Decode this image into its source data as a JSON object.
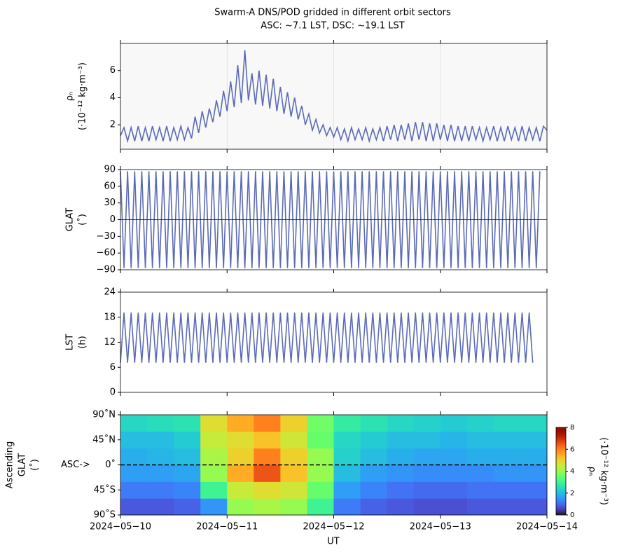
{
  "chart_data": {
    "type": "multi-panel",
    "title": "Swarm-A DNS/POD gridded in different orbit sectors",
    "subtitle": "ASC: ~7.1 LST, DSC: ~19.1 LST",
    "xlabel": "UT",
    "xlim": [
      0,
      96
    ],
    "xticks": [
      {
        "value": 0,
        "label": "2024−05−10"
      },
      {
        "value": 24,
        "label": "2024−05−11"
      },
      {
        "value": 48,
        "label": "2024−05−12"
      },
      {
        "value": 72,
        "label": "2024−05−13"
      },
      {
        "value": 96,
        "label": "2024−05−14"
      }
    ],
    "x": [
      0,
      0.8,
      1.6,
      2.4,
      3.2,
      4,
      4.8,
      5.6,
      6.4,
      7.2,
      8,
      8.8,
      9.6,
      10.4,
      11.2,
      12,
      12.8,
      13.6,
      14.4,
      15.2,
      16,
      16.8,
      17.6,
      18.4,
      19.2,
      20,
      20.8,
      21.6,
      22.4,
      23.2,
      24,
      24.8,
      25.6,
      26.4,
      27.2,
      28,
      28.8,
      29.6,
      30.4,
      31.2,
      32,
      32.8,
      33.6,
      34.4,
      35.2,
      36,
      36.8,
      37.6,
      38.4,
      39.2,
      40,
      40.8,
      41.6,
      42.4,
      43.2,
      44,
      44.8,
      45.6,
      46.4,
      47.2,
      48,
      48.8,
      49.6,
      50.4,
      51.2,
      52,
      52.8,
      53.6,
      54.4,
      55.2,
      56,
      56.8,
      57.6,
      58.4,
      59.2,
      60,
      60.8,
      61.6,
      62.4,
      63.2,
      64,
      64.8,
      65.6,
      66.4,
      67.2,
      68,
      68.8,
      69.6,
      70.4,
      71.2,
      72,
      72.8,
      73.6,
      74.4,
      75.2,
      76,
      76.8,
      77.6,
      78.4,
      79.2,
      80,
      80.8,
      81.6,
      82.4,
      83.2,
      84,
      84.8,
      85.6,
      86.4,
      87.2,
      88,
      88.8,
      89.6,
      90.4,
      91.2,
      92,
      92.8,
      93.6,
      94.4,
      95.2,
      96
    ],
    "panels": [
      {
        "type": "line",
        "ylabel": [
          "ρₙ",
          "(·10⁻¹² kg·m⁻³)"
        ],
        "ylim": [
          0.2,
          8
        ],
        "yticks": [
          2,
          4,
          6
        ],
        "grid": true,
        "series": [
          {
            "color": "#5b6bb5",
            "values": [
              1.2,
              1.8,
              0.8,
              1.8,
              0.8,
              1.9,
              0.8,
              1.8,
              0.8,
              1.9,
              0.9,
              1.8,
              0.8,
              1.9,
              0.8,
              1.8,
              0.9,
              1.9,
              0.9,
              1.8,
              1.0,
              2.6,
              1.4,
              3.0,
              1.8,
              3.2,
              2.2,
              3.8,
              2.6,
              4.5,
              3.0,
              5.2,
              3.3,
              6.4,
              3.6,
              7.5,
              3.8,
              5.8,
              3.5,
              6.0,
              3.4,
              5.7,
              3.2,
              5.4,
              3.0,
              4.8,
              2.8,
              4.4,
              2.6,
              4.0,
              2.4,
              3.4,
              2.0,
              2.8,
              1.6,
              2.4,
              1.4,
              2.0,
              1.2,
              1.8,
              1.1,
              1.8,
              0.9,
              1.7,
              0.8,
              1.8,
              0.9,
              1.7,
              0.9,
              1.8,
              0.8,
              1.7,
              0.9,
              1.8,
              0.8,
              1.9,
              0.9,
              2.0,
              0.8,
              2.0,
              0.9,
              2.1,
              0.8,
              2.2,
              0.9,
              2.2,
              0.8,
              2.1,
              0.8,
              2.1,
              0.9,
              2.0,
              0.8,
              2.0,
              0.8,
              1.9,
              0.8,
              1.9,
              0.8,
              1.9,
              0.9,
              1.8,
              0.8,
              1.8,
              0.9,
              1.9,
              0.8,
              1.8,
              0.8,
              1.9,
              0.9,
              1.8,
              0.8,
              1.9,
              0.8,
              1.8,
              0.9,
              1.8,
              0.8,
              1.9,
              1.6
            ]
          }
        ]
      },
      {
        "type": "line",
        "ylabel": [
          "GLAT",
          "(˚)"
        ],
        "ylim": [
          -90,
          90
        ],
        "yticks": [
          {
            "value": -90,
            "label": "−90"
          },
          {
            "value": -60,
            "label": "−60"
          },
          {
            "value": -30,
            "label": "−30"
          },
          0,
          30,
          60,
          90
        ],
        "hline": 0,
        "series": [
          {
            "color": "#5b6bb5",
            "values": [
              87,
              -87,
              87,
              -87,
              87,
              -87,
              87,
              -87,
              87,
              -87,
              87,
              -87,
              87,
              -87,
              87,
              -87,
              87,
              -87,
              87,
              -87,
              87,
              -87,
              87,
              -87,
              87,
              -87,
              87,
              -87,
              87,
              -87,
              87,
              -87,
              87,
              -87,
              87,
              -87,
              87,
              -87,
              87,
              -87,
              87,
              -87,
              87,
              -87,
              87,
              -87,
              87,
              -87,
              87,
              -87,
              87,
              -87,
              87,
              -87,
              87,
              -87,
              87,
              -87,
              87,
              -87,
              87,
              -87,
              87,
              -87,
              87,
              -87,
              87,
              -87,
              87,
              -87,
              87,
              -87,
              87,
              -87,
              87,
              -87,
              87,
              -87,
              87,
              -87,
              87,
              -87,
              87,
              -87,
              87,
              -87,
              87,
              -87,
              87,
              -87,
              87,
              -87,
              87,
              -87,
              87,
              -87,
              87,
              -87,
              87,
              -87,
              87,
              -87,
              87,
              -87,
              87,
              -87,
              87,
              -87,
              87,
              -87,
              87,
              -87,
              87,
              -87,
              87,
              -87,
              87,
              -87,
              87
            ]
          }
        ]
      },
      {
        "type": "line",
        "ylabel": [
          "LST",
          "(h)"
        ],
        "ylim": [
          0,
          24
        ],
        "yticks": [
          0,
          6,
          12,
          18,
          24
        ],
        "series": [
          {
            "color": "#5b6bb5",
            "values": [
              7.1,
              19.1,
              7.1,
              19.1,
              7.1,
              19.1,
              7.1,
              19.1,
              7.1,
              19.1,
              7.1,
              19.1,
              7.1,
              19.1,
              7.1,
              19.1,
              7.1,
              19.1,
              7.1,
              19.1,
              7.1,
              19.1,
              7.1,
              19.1,
              7.1,
              19.1,
              7.1,
              19.1,
              7.1,
              19.1,
              7.1,
              19.1,
              7.1,
              19.1,
              7.1,
              19.1,
              7.1,
              19.1,
              7.1,
              19.1,
              7.1,
              19.1,
              7.1,
              19.1,
              7.1,
              19.1,
              7.1,
              19.1,
              7.1,
              19.1,
              7.1,
              19.1,
              7.1,
              19.1,
              7.1,
              19.1,
              7.1,
              19.1,
              7.1,
              19.1,
              7.1,
              19.1,
              7.1,
              19.1,
              7.1,
              19.1,
              7.1,
              19.1,
              7.1,
              19.1,
              7.1,
              19.1,
              7.1,
              19.1,
              7.1,
              19.1,
              7.1,
              19.1,
              7.1,
              19.1,
              7.1,
              19.1,
              7.1,
              19.1,
              7.1,
              19.1,
              7.1,
              19.1,
              7.1,
              19.1,
              7.1,
              19.1,
              7.1,
              19.1,
              7.1,
              19.1,
              7.1,
              19.1,
              7.1,
              19.1,
              7.1,
              19.1,
              7.1,
              19.1,
              7.1,
              19.1,
              7.1,
              19.1,
              7.1,
              19.1,
              7.1,
              19.1,
              7.1,
              19.1,
              7.1,
              19.1,
              7.1
            ]
          }
        ]
      },
      {
        "type": "heatmap",
        "ylabel": [
          "Ascending",
          "GLAT",
          "(˚)"
        ],
        "ylim": [
          -90,
          90
        ],
        "yticks": [
          {
            "value": -90,
            "label": "90˚S"
          },
          {
            "value": -45,
            "label": "45˚S"
          },
          {
            "value": 0,
            "label": "0˚"
          },
          {
            "value": 45,
            "label": "45˚N"
          },
          {
            "value": 90,
            "label": "90˚N"
          }
        ],
        "annotation": "ASC->",
        "hline": 0,
        "colormap": "turbo",
        "x_edges": [
          0,
          6,
          12,
          18,
          24,
          30,
          36,
          42,
          48,
          54,
          60,
          66,
          72,
          78,
          84,
          90,
          96
        ],
        "y_edges": [
          -90,
          -60,
          -30,
          0,
          30,
          60,
          90
        ],
        "values": [
          [
            0.8,
            0.8,
            0.9,
            1.5,
            4.0,
            4.2,
            4.0,
            3.0,
            1.2,
            0.9,
            0.8,
            0.7,
            0.7,
            0.8,
            0.8,
            0.8
          ],
          [
            1.2,
            1.2,
            1.3,
            3.0,
            4.5,
            4.8,
            4.6,
            3.5,
            1.6,
            1.3,
            1.1,
            1.0,
            1.0,
            1.1,
            1.1,
            1.1
          ],
          [
            1.6,
            1.6,
            1.7,
            4.0,
            5.5,
            6.5,
            5.2,
            4.0,
            2.0,
            1.6,
            1.5,
            1.4,
            1.4,
            1.4,
            1.5,
            1.5
          ],
          [
            1.8,
            1.9,
            2.0,
            4.2,
            5.0,
            6.0,
            5.0,
            4.0,
            2.3,
            2.0,
            1.8,
            1.7,
            1.7,
            1.8,
            1.8,
            1.8
          ],
          [
            2.0,
            2.0,
            2.2,
            4.5,
            4.8,
            5.2,
            4.6,
            3.5,
            2.4,
            2.2,
            2.0,
            2.0,
            1.9,
            2.0,
            2.0,
            2.0
          ],
          [
            2.4,
            2.5,
            2.6,
            4.8,
            5.5,
            6.0,
            5.0,
            3.6,
            2.8,
            2.6,
            2.4,
            2.3,
            2.2,
            2.3,
            2.4,
            2.4
          ]
        ],
        "colorbar": {
          "label": [
            "ρₙ",
            "(·10⁻¹² kg·m⁻³)"
          ],
          "clim": [
            0,
            8
          ],
          "ticks": [
            0,
            2,
            4,
            6,
            8
          ]
        }
      }
    ]
  }
}
